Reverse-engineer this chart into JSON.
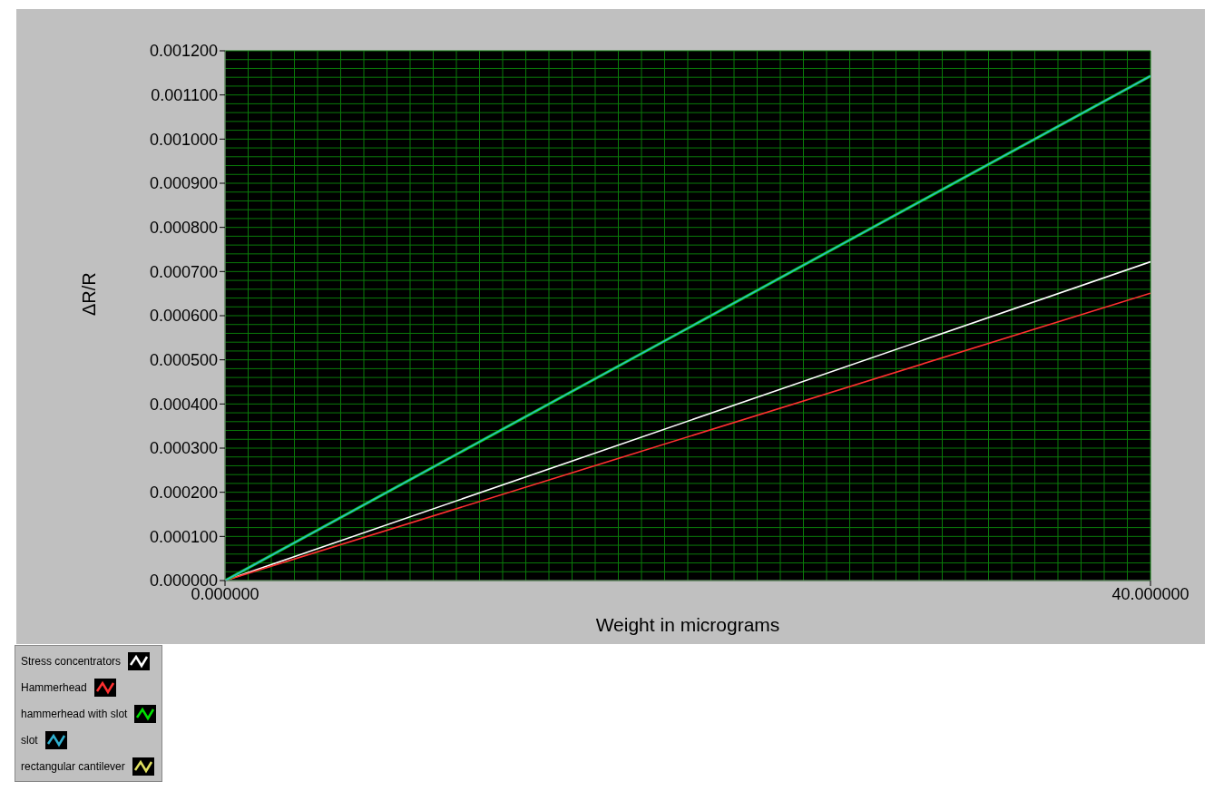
{
  "chart_data": {
    "type": "line",
    "xlabel": "Weight in micrograms",
    "ylabel": "ΔR/R",
    "x": [
      0,
      40
    ],
    "series": [
      {
        "name": "Stress concentrators",
        "color": "#ffffff",
        "values": [
          0,
          0.000722
        ]
      },
      {
        "name": "Hammerhead",
        "color": "#ff3030",
        "values": [
          0,
          0.000651
        ]
      },
      {
        "name": "hammerhead with slot",
        "color": "#00e000",
        "values": [
          0,
          0.001143
        ]
      },
      {
        "name": "slot",
        "color": "#30b0d0",
        "values": [
          0,
          0.001143
        ]
      },
      {
        "name": "rectangular cantilever",
        "color": "#e0e060",
        "values": [
          null,
          null
        ]
      }
    ],
    "xlim": [
      0,
      40
    ],
    "xticks": [
      {
        "value": 0,
        "label": "0.000000"
      },
      {
        "value": 40,
        "label": "40.000000"
      }
    ],
    "ylim": [
      0,
      0.0012
    ],
    "yticks": [
      {
        "value": 0,
        "label": "0.000000"
      },
      {
        "value": 0.0001,
        "label": "0.000100"
      },
      {
        "value": 0.0002,
        "label": "0.000200"
      },
      {
        "value": 0.0003,
        "label": "0.000300"
      },
      {
        "value": 0.0004,
        "label": "0.000400"
      },
      {
        "value": 0.0005,
        "label": "0.000500"
      },
      {
        "value": 0.0006,
        "label": "0.000600"
      },
      {
        "value": 0.0007,
        "label": "0.000700"
      },
      {
        "value": 0.0008,
        "label": "0.000800"
      },
      {
        "value": 0.0009,
        "label": "0.000900"
      },
      {
        "value": 0.001,
        "label": "0.001000"
      },
      {
        "value": 0.0011,
        "label": "0.001100"
      },
      {
        "value": 0.0012,
        "label": "0.001200"
      }
    ],
    "grid": true,
    "legend": "bottom left",
    "marker": "none",
    "line_style": "solid"
  }
}
